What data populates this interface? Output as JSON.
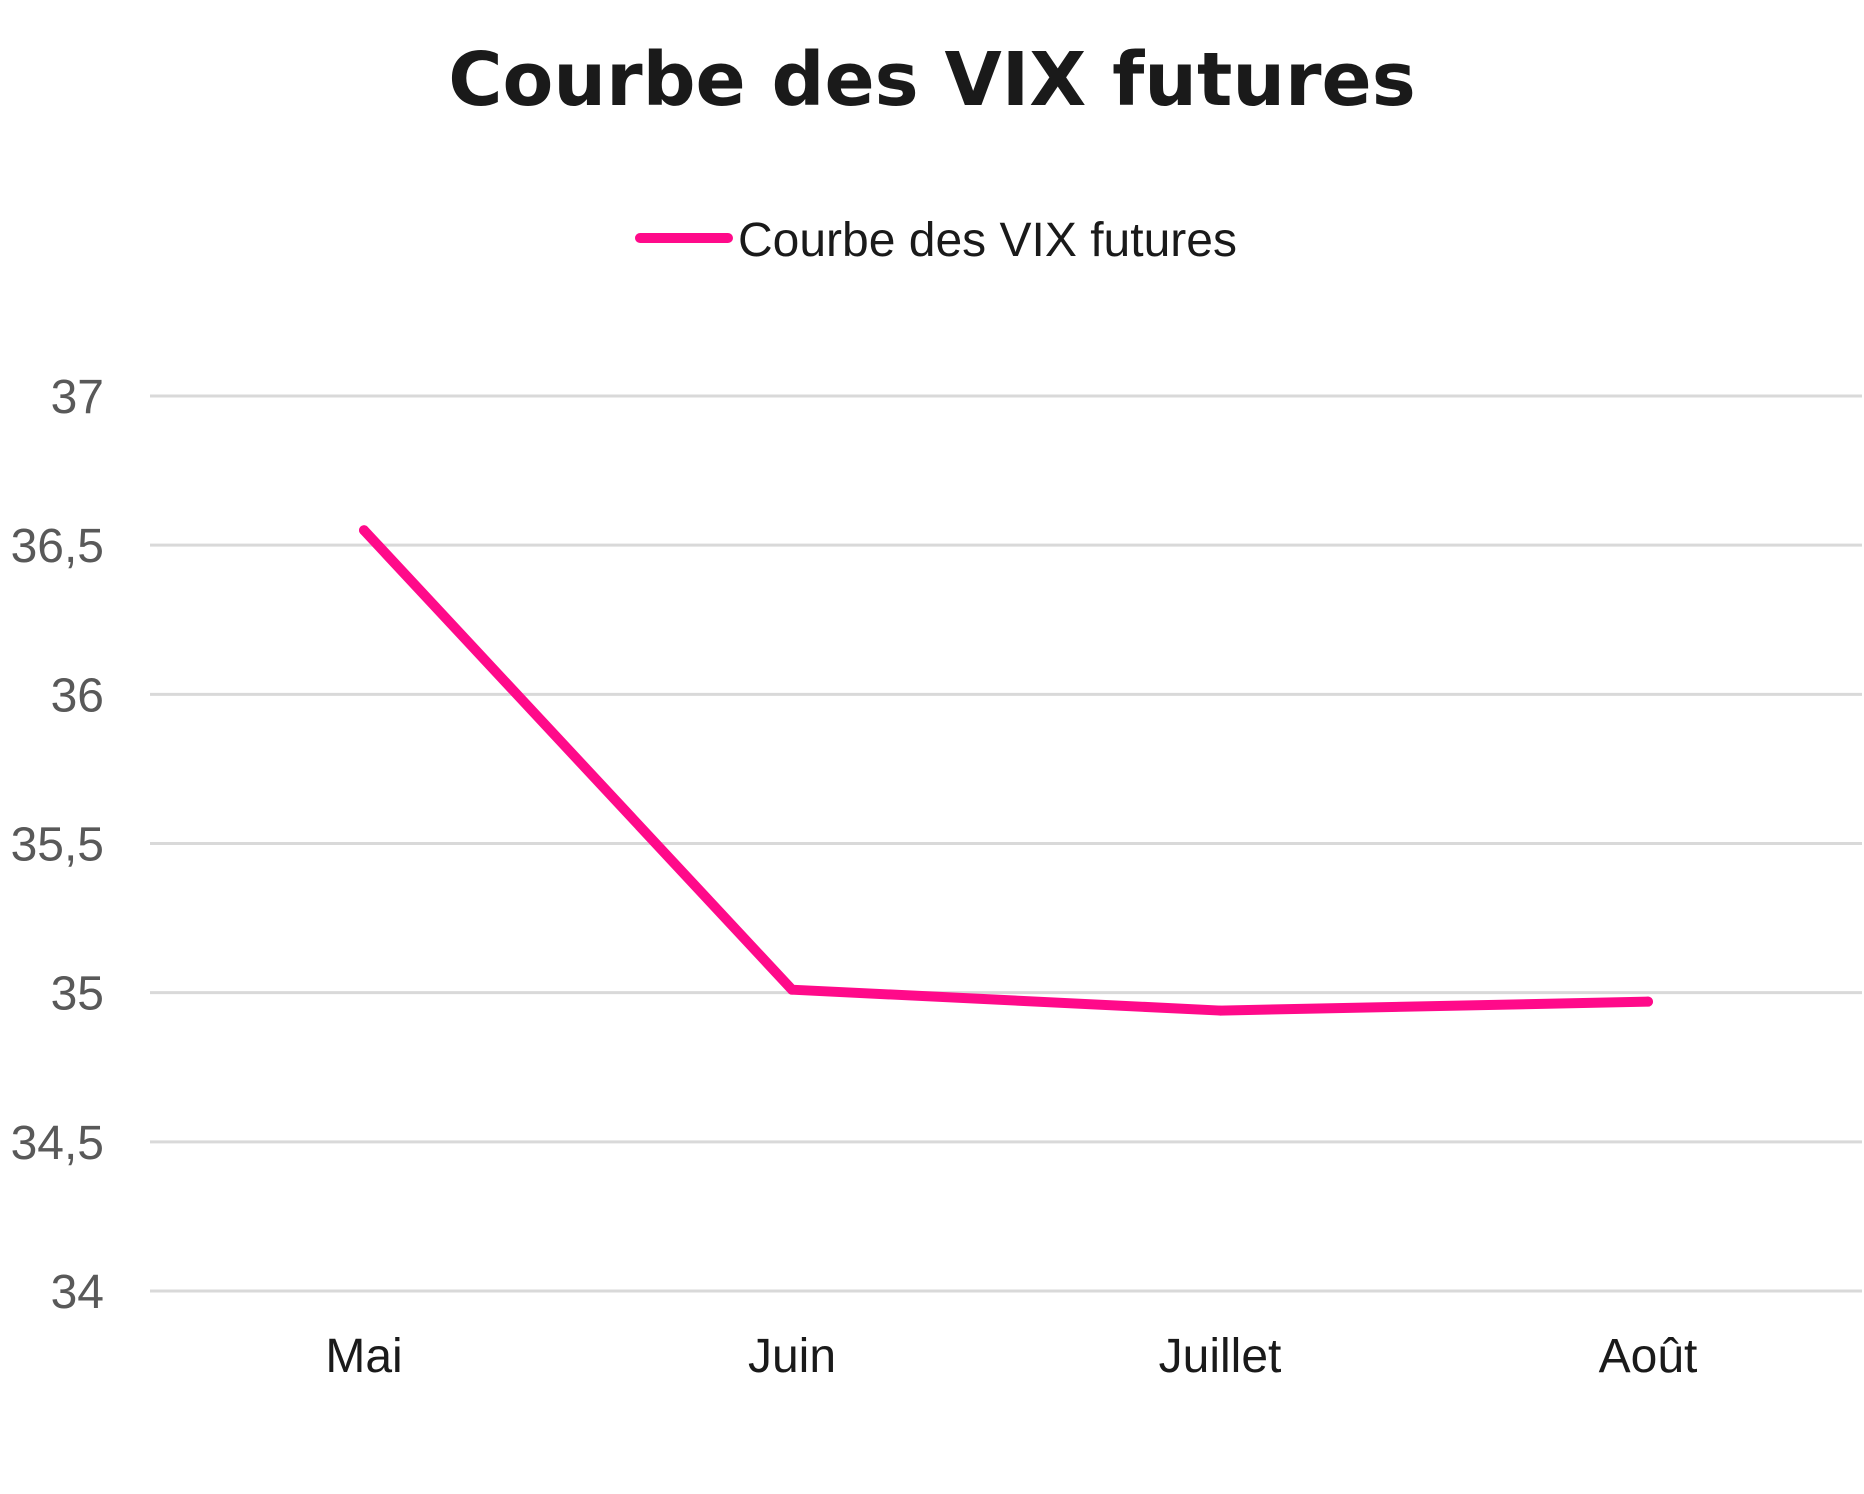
{
  "colors": {
    "series": "#ff0a8a",
    "grid": "#d9d9d9",
    "text": "#1a1a1a",
    "tick_text": "#595959"
  },
  "chart_data": {
    "type": "line",
    "title": "Courbe des VIX futures",
    "xlabel": "",
    "ylabel": "",
    "categories": [
      "Mai",
      "Juin",
      "Juillet",
      "Août"
    ],
    "series": [
      {
        "name": "Courbe des VIX futures",
        "values": [
          36.55,
          35.01,
          34.94,
          34.97
        ]
      }
    ],
    "y_ticks": [
      "37",
      "36,5",
      "36",
      "35,5",
      "35",
      "34,5",
      "34"
    ],
    "ylim": [
      34,
      37
    ],
    "grid": true,
    "legend_position": "top-center"
  }
}
